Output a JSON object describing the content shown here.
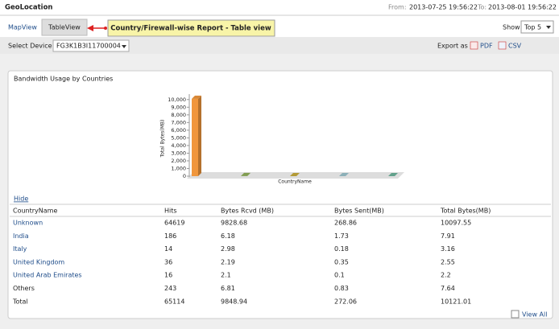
{
  "header": {
    "title": "GeoLocation",
    "from_label": "From:",
    "from": "2013-07-25 19:56:22",
    "to_label": "To:",
    "to": "2013-08-01 19:56:22"
  },
  "tabs": [
    "MapView",
    "TableView"
  ],
  "callout": "Country/Firewall-wise Report - Table view",
  "show": {
    "label": "Show",
    "value": "Top 5"
  },
  "toolbar": {
    "device_label": "Select Device :",
    "device": "FG3K1B3I11700004",
    "export_label": "Export as :",
    "pdf": "PDF",
    "csv": "CSV"
  },
  "panel": {
    "hide": "Hide",
    "view_all": "View All"
  },
  "chart_data": {
    "type": "bar3d",
    "title": "Bandwidth Usage by Countries",
    "y_label": "Total Bytes(MB)",
    "x_label": "CountryName",
    "categories": [
      null,
      null,
      null,
      null,
      null
    ],
    "values": [
      10097.55,
      7.91,
      3.16,
      2.55,
      2.2
    ],
    "colors": [
      "#f0963c",
      "#8fae5a",
      "#c6ab3c",
      "#9cc4cc",
      "#6db39a"
    ],
    "ylim": [
      0,
      10500
    ],
    "yticks": [
      0,
      1000,
      2000,
      3000,
      4000,
      5000,
      6000,
      7000,
      8000,
      9000,
      {
        "value": 1000,
        "label": "1,000"
      },
      {
        "value": 2000,
        "label": "2,000"
      },
      {
        "value": 3000,
        "label": "3,000"
      },
      {
        "value": 4000,
        "label": "4,000"
      },
      {
        "value": 5000,
        "label": "5,000"
      },
      {
        "value": 6000,
        "label": "6,000"
      },
      {
        "value": 7000,
        "label": "7,000"
      },
      {
        "value": 8000,
        "label": "8,000"
      },
      {
        "value": 9000,
        "label": "9,000"
      },
      {
        "value": 10000,
        "label": "10,000"
      }
    ]
  },
  "table": {
    "columns": [
      "CountryName",
      "Hits",
      "Bytes Rcvd (MB)",
      "Bytes Sent(MB)",
      "Total Bytes(MB)"
    ],
    "rows": [
      [
        "Unknown",
        "64619",
        "9828.68",
        "268.86",
        "10097.55"
      ],
      [
        "India",
        "186",
        "6.18",
        "1.73",
        "7.91"
      ],
      [
        "Italy",
        "14",
        "2.98",
        "0.18",
        "3.16"
      ],
      [
        "United Kingdom",
        "36",
        "2.19",
        "0.35",
        "2.55"
      ],
      [
        "United Arab Emirates",
        "16",
        "2.1",
        "0.1",
        "2.2"
      ],
      [
        "Others",
        "243",
        "6.81",
        "0.83",
        "7.64"
      ],
      [
        "Total",
        "65114",
        "9848.94",
        "272.06",
        "10121.01"
      ]
    ]
  }
}
